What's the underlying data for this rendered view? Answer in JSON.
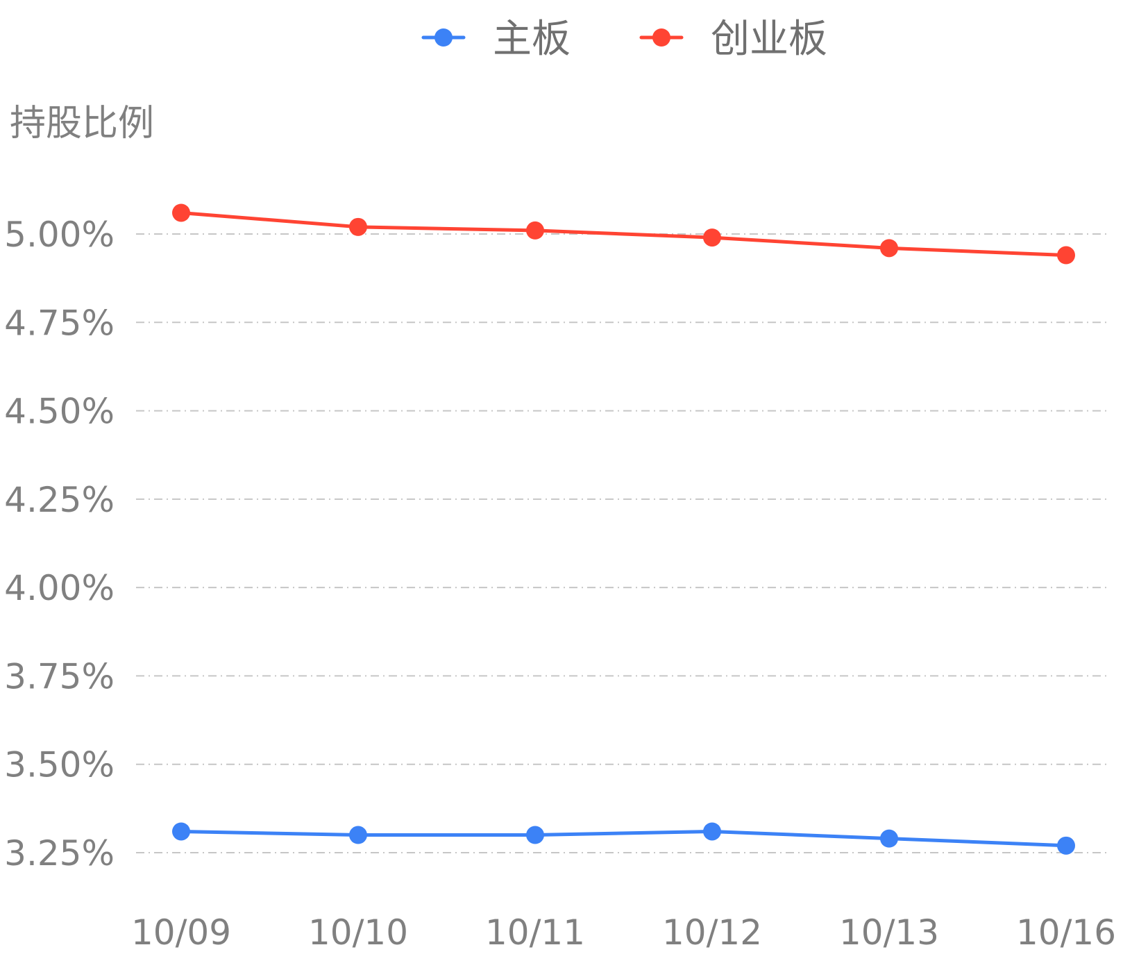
{
  "chart_data": {
    "type": "line",
    "title": "",
    "ylabel": "持股比例",
    "xlabel": "",
    "categories": [
      "10/09",
      "10/10",
      "10/11",
      "10/12",
      "10/13",
      "10/16"
    ],
    "series": [
      {
        "name": "主板",
        "color": "#3c82f6",
        "values": [
          3.31,
          3.3,
          3.3,
          3.31,
          3.29,
          3.27
        ]
      },
      {
        "name": "创业板",
        "color": "#ff4433",
        "values": [
          5.06,
          5.02,
          5.01,
          4.99,
          4.96,
          4.94
        ]
      }
    ],
    "ylim": [
      3.25,
      5.0
    ],
    "yticks": [
      3.25,
      3.5,
      3.75,
      4.0,
      4.25,
      4.5,
      4.75,
      5.0
    ],
    "ytick_labels": [
      "3.25%",
      "3.50%",
      "3.75%",
      "4.00%",
      "4.25%",
      "4.50%",
      "4.75%",
      "5.00%"
    ],
    "grid": true,
    "legend_position": "top-center",
    "marker": "circle"
  }
}
